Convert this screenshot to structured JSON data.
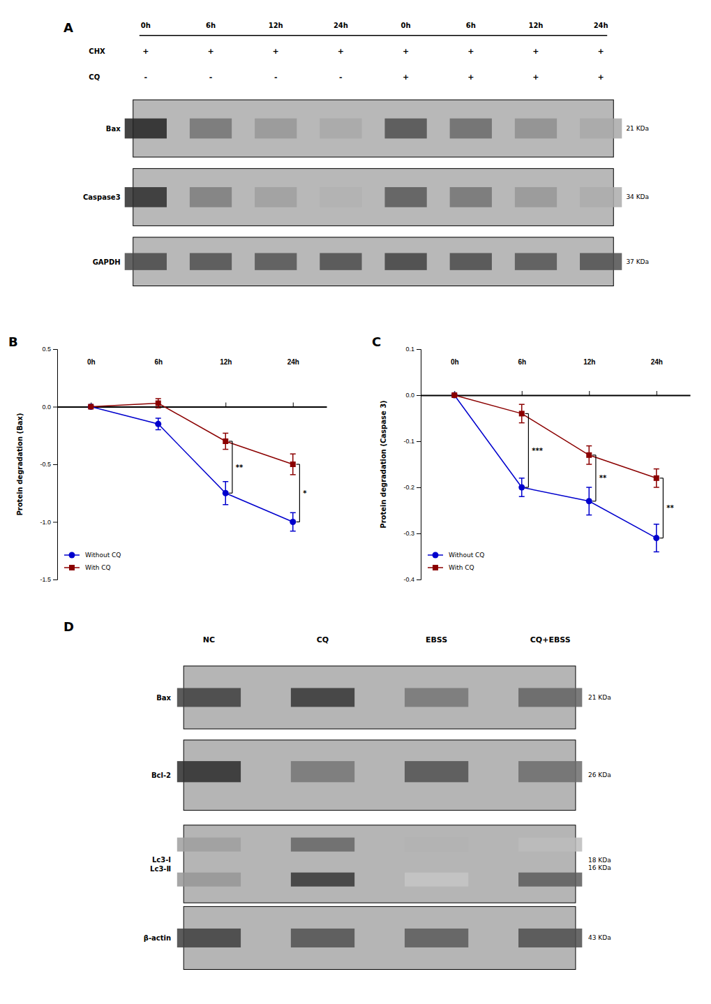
{
  "chart_data": [
    {
      "type": "blot",
      "title": "A",
      "color": "#b8b8b8",
      "lanes": [
        "0h",
        "6h",
        "12h",
        "24h",
        "0h",
        "6h",
        "12h",
        "24h"
      ],
      "conditions": [
        {
          "name": "CHX",
          "values": [
            "+",
            "+",
            "+",
            "+",
            "+",
            "+",
            "+",
            "+"
          ]
        },
        {
          "name": "CQ",
          "values": [
            "-",
            "-",
            "-",
            "-",
            "+",
            "+",
            "+",
            "+"
          ]
        }
      ],
      "bands": [
        {
          "name": "Bax",
          "kda": "21 KDa",
          "intensities": [
            0.95,
            0.5,
            0.3,
            0.2,
            0.7,
            0.55,
            0.35,
            0.2
          ]
        },
        {
          "name": "Caspase3",
          "kda": "34 KDa",
          "intensities": [
            0.9,
            0.45,
            0.25,
            0.15,
            0.65,
            0.5,
            0.3,
            0.18
          ]
        },
        {
          "name": "GAPDH",
          "kda": "37 KDa",
          "intensities": [
            0.75,
            0.7,
            0.68,
            0.72,
            0.78,
            0.73,
            0.68,
            0.7
          ]
        }
      ]
    },
    {
      "type": "line",
      "title": "B",
      "ylabel": "Protein degradation (Bax)",
      "categories": [
        "0h",
        "6h",
        "12h",
        "24h"
      ],
      "series": [
        {
          "name": "Without CQ",
          "color": "#0000CD",
          "marker": "circle",
          "values": [
            0.0,
            -0.15,
            -0.75,
            -1.0
          ],
          "errors": [
            0.0,
            0.05,
            0.1,
            0.08
          ]
        },
        {
          "name": "With CQ",
          "color": "#8B0000",
          "marker": "square",
          "values": [
            0.0,
            0.03,
            -0.3,
            -0.5
          ],
          "errors": [
            0.0,
            0.04,
            0.07,
            0.09
          ]
        }
      ],
      "ylim": [
        -1.5,
        0.5
      ],
      "yticks": [
        -1.5,
        {
          "value": -1.0,
          "label": "-1.0"
        },
        -0.5,
        {
          "value": 0.0,
          "label": "0.0"
        },
        0.5
      ],
      "legend": "lower left",
      "significance": [
        {
          "category": "12h",
          "text": "**"
        },
        {
          "category": "24h",
          "text": "*"
        }
      ]
    },
    {
      "type": "line",
      "title": "C",
      "ylabel": "Protein degradation (Caspase 3)",
      "categories": [
        "0h",
        "6h",
        "12h",
        "24h"
      ],
      "series": [
        {
          "name": "Without CQ",
          "color": "#0000CD",
          "marker": "circle",
          "values": [
            0.0,
            -0.2,
            -0.23,
            -0.31
          ],
          "errors": [
            0.0,
            0.02,
            0.03,
            0.03
          ]
        },
        {
          "name": "With CQ",
          "color": "#8B0000",
          "marker": "square",
          "values": [
            0.0,
            -0.04,
            -0.13,
            -0.18
          ],
          "errors": [
            0.0,
            0.02,
            0.02,
            0.02
          ]
        }
      ],
      "ylim": [
        -0.4,
        0.1
      ],
      "yticks": [
        -0.4,
        -0.3,
        -0.2,
        -0.1,
        {
          "value": 0.0,
          "label": "0.0"
        },
        0.1
      ],
      "legend": "lower left",
      "significance": [
        {
          "category": "6h",
          "text": "***"
        },
        {
          "category": "12h",
          "text": "**"
        },
        {
          "category": "24h",
          "text": "**"
        }
      ]
    },
    {
      "type": "blot",
      "title": "D",
      "color": "#b5b5b5",
      "lanes": [
        "NC",
        "CQ",
        "EBSS",
        "CQ+EBSS"
      ],
      "bands": [
        {
          "name": "Bax",
          "kda": "21 KDa",
          "intensities": [
            0.8,
            0.85,
            0.5,
            0.6
          ]
        },
        {
          "name": "Bcl-2",
          "kda": "26 KDa",
          "intensities": [
            0.9,
            0.5,
            0.7,
            0.55
          ]
        },
        {
          "name": "Lc3-Ⅰ\nLc3-Ⅱ",
          "kda": "18 KDa\n16 KDa",
          "intensities": [
            [
              0.3,
              0.6,
              0.2,
              0.15
            ],
            [
              0.35,
              0.85,
              0.1,
              0.65
            ]
          ]
        },
        {
          "name": "β-actin",
          "kda": "43 KDa",
          "intensities": [
            0.8,
            0.7,
            0.65,
            0.72
          ]
        }
      ]
    }
  ]
}
